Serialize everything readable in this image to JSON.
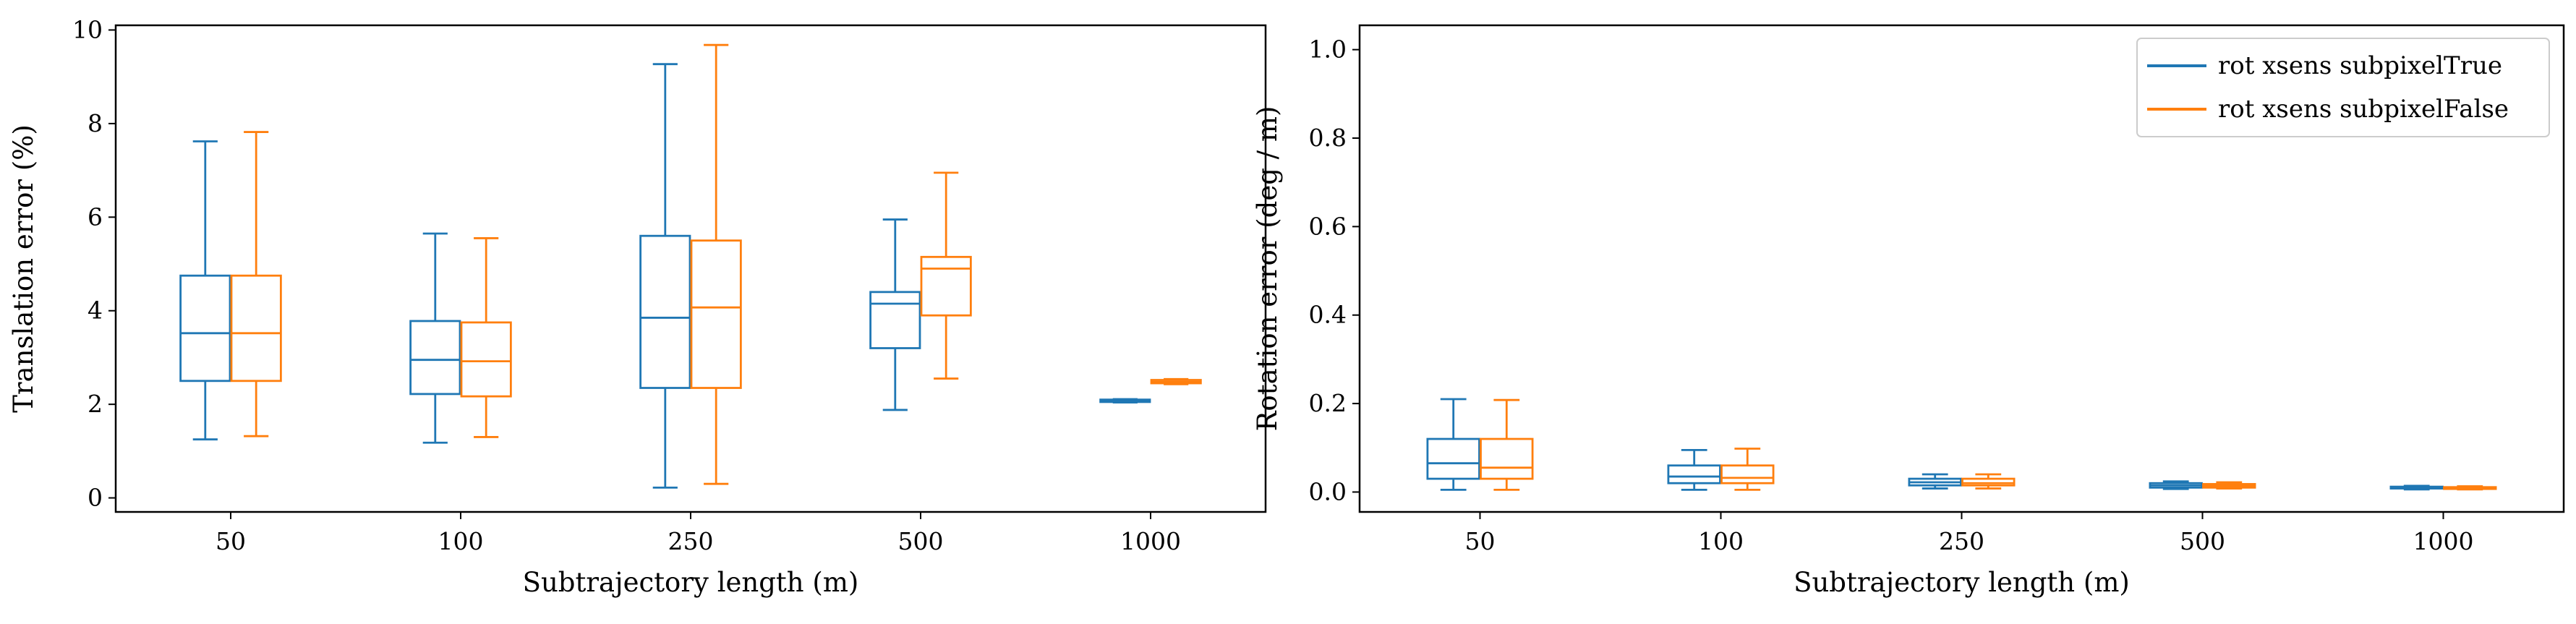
{
  "colors": {
    "series_a": "#1f77b4",
    "series_b": "#ff7f0e",
    "axes": "#000000"
  },
  "chart_data": [
    {
      "type": "box",
      "xlabel": "Subtrajectory length (m)",
      "ylabel": "Translation error (%)",
      "categories": [
        "50",
        "100",
        "250",
        "500",
        "1000"
      ],
      "ylim": [
        -0.3,
        10.1
      ],
      "yticks": [
        0,
        2,
        4,
        6,
        8,
        10
      ],
      "grid": false,
      "legend": "none",
      "series": [
        {
          "name": "rot xsens subpixelTrue",
          "boxes": [
            {
              "min": 1.25,
              "q1": 2.5,
              "median": 3.52,
              "q3": 4.75,
              "max": 7.62
            },
            {
              "min": 1.18,
              "q1": 2.22,
              "median": 2.95,
              "q3": 3.78,
              "max": 5.65
            },
            {
              "min": 0.22,
              "q1": 2.35,
              "median": 3.85,
              "q3": 5.6,
              "max": 9.27
            },
            {
              "min": 1.88,
              "q1": 3.2,
              "median": 4.15,
              "q3": 4.4,
              "max": 5.95
            },
            {
              "min": 2.04,
              "q1": 2.05,
              "median": 2.07,
              "q3": 2.1,
              "max": 2.11
            }
          ]
        },
        {
          "name": "rot xsens subpixelFalse",
          "boxes": [
            {
              "min": 1.32,
              "q1": 2.5,
              "median": 3.52,
              "q3": 4.75,
              "max": 7.82
            },
            {
              "min": 1.3,
              "q1": 2.17,
              "median": 2.92,
              "q3": 3.75,
              "max": 5.55
            },
            {
              "min": 0.3,
              "q1": 2.35,
              "median": 4.07,
              "q3": 5.5,
              "max": 9.68
            },
            {
              "min": 2.55,
              "q1": 3.9,
              "median": 4.9,
              "q3": 5.15,
              "max": 6.95
            },
            {
              "min": 2.43,
              "q1": 2.45,
              "median": 2.48,
              "q3": 2.52,
              "max": 2.54
            }
          ]
        }
      ]
    },
    {
      "type": "box",
      "xlabel": "Subtrajectory length (m)",
      "ylabel": "Rotation error (deg / m)",
      "categories": [
        "50",
        "100",
        "250",
        "500",
        "1000"
      ],
      "ylim": [
        -0.045,
        1.055
      ],
      "yticks": [
        "0.0",
        "0.2",
        "0.4",
        "0.6",
        "0.8",
        "1.0"
      ],
      "grid": false,
      "legend": "top-right",
      "series": [
        {
          "name": "rot xsens subpixelTrue",
          "boxes": [
            {
              "min": 0.005,
              "q1": 0.03,
              "median": 0.065,
              "q3": 0.12,
              "max": 0.21
            },
            {
              "min": 0.005,
              "q1": 0.02,
              "median": 0.035,
              "q3": 0.06,
              "max": 0.095
            },
            {
              "min": 0.008,
              "q1": 0.015,
              "median": 0.022,
              "q3": 0.03,
              "max": 0.04
            },
            {
              "min": 0.007,
              "q1": 0.01,
              "median": 0.015,
              "q3": 0.02,
              "max": 0.024
            },
            {
              "min": 0.006,
              "q1": 0.008,
              "median": 0.01,
              "q3": 0.012,
              "max": 0.014
            }
          ]
        },
        {
          "name": "rot xsens subpixelFalse",
          "boxes": [
            {
              "min": 0.005,
              "q1": 0.03,
              "median": 0.055,
              "q3": 0.12,
              "max": 0.208
            },
            {
              "min": 0.005,
              "q1": 0.02,
              "median": 0.032,
              "q3": 0.06,
              "max": 0.098
            },
            {
              "min": 0.008,
              "q1": 0.015,
              "median": 0.02,
              "q3": 0.03,
              "max": 0.04
            },
            {
              "min": 0.008,
              "q1": 0.01,
              "median": 0.014,
              "q3": 0.018,
              "max": 0.022
            },
            {
              "min": 0.006,
              "q1": 0.007,
              "median": 0.009,
              "q3": 0.011,
              "max": 0.013
            }
          ]
        }
      ]
    }
  ]
}
